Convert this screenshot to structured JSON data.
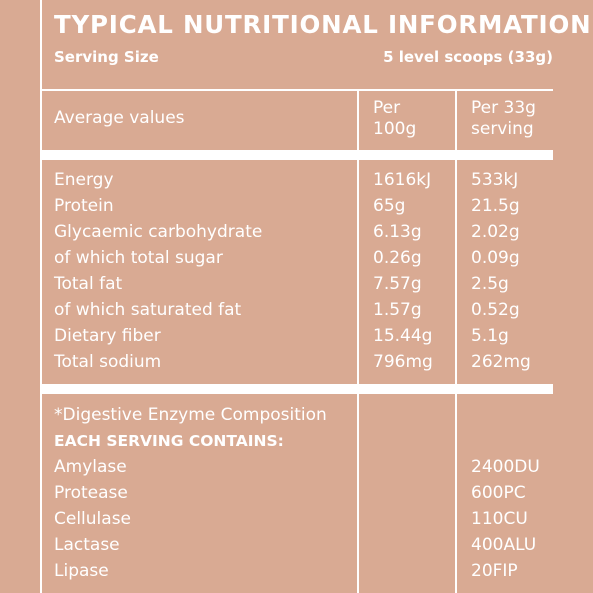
{
  "title": "TYPICAL NUTRITIONAL INFORMATION",
  "serving": {
    "label": "Serving Size",
    "value": "5 level scoops (33g)"
  },
  "header": {
    "average": "Average values",
    "per100_line1": "Per",
    "per100_line2": "100g",
    "perserving_line1": "Per 33g",
    "perserving_line2": "serving"
  },
  "nutrients": [
    {
      "name": "Energy",
      "per100": "1616kJ",
      "serving": "533kJ"
    },
    {
      "name": "Protein",
      "per100": "65g",
      "serving": "21.5g"
    },
    {
      "name": "Glycaemic carbohydrate",
      "per100": "6.13g",
      "serving": "2.02g"
    },
    {
      "name": "of which total sugar",
      "per100": "0.26g",
      "serving": "0.09g"
    },
    {
      "name": "Total fat",
      "per100": "7.57g",
      "serving": "2.5g"
    },
    {
      "name": "of which saturated fat",
      "per100": "1.57g",
      "serving": "0.52g"
    },
    {
      "name": "Dietary fiber",
      "per100": "15.44g",
      "serving": "5.1g"
    },
    {
      "name": "Total sodium",
      "per100": "796mg",
      "serving": "262mg"
    }
  ],
  "enzymes": {
    "note": "*Digestive Enzyme Composition",
    "heading": "EACH SERVING CONTAINS:",
    "items": [
      {
        "name": "Amylase",
        "amount": "2400DU"
      },
      {
        "name": "Protease",
        "amount": "600PC"
      },
      {
        "name": "Cellulase",
        "amount": "110CU"
      },
      {
        "name": "Lactase",
        "amount": "400ALU"
      },
      {
        "name": "Lipase",
        "amount": "20FIP"
      }
    ]
  }
}
